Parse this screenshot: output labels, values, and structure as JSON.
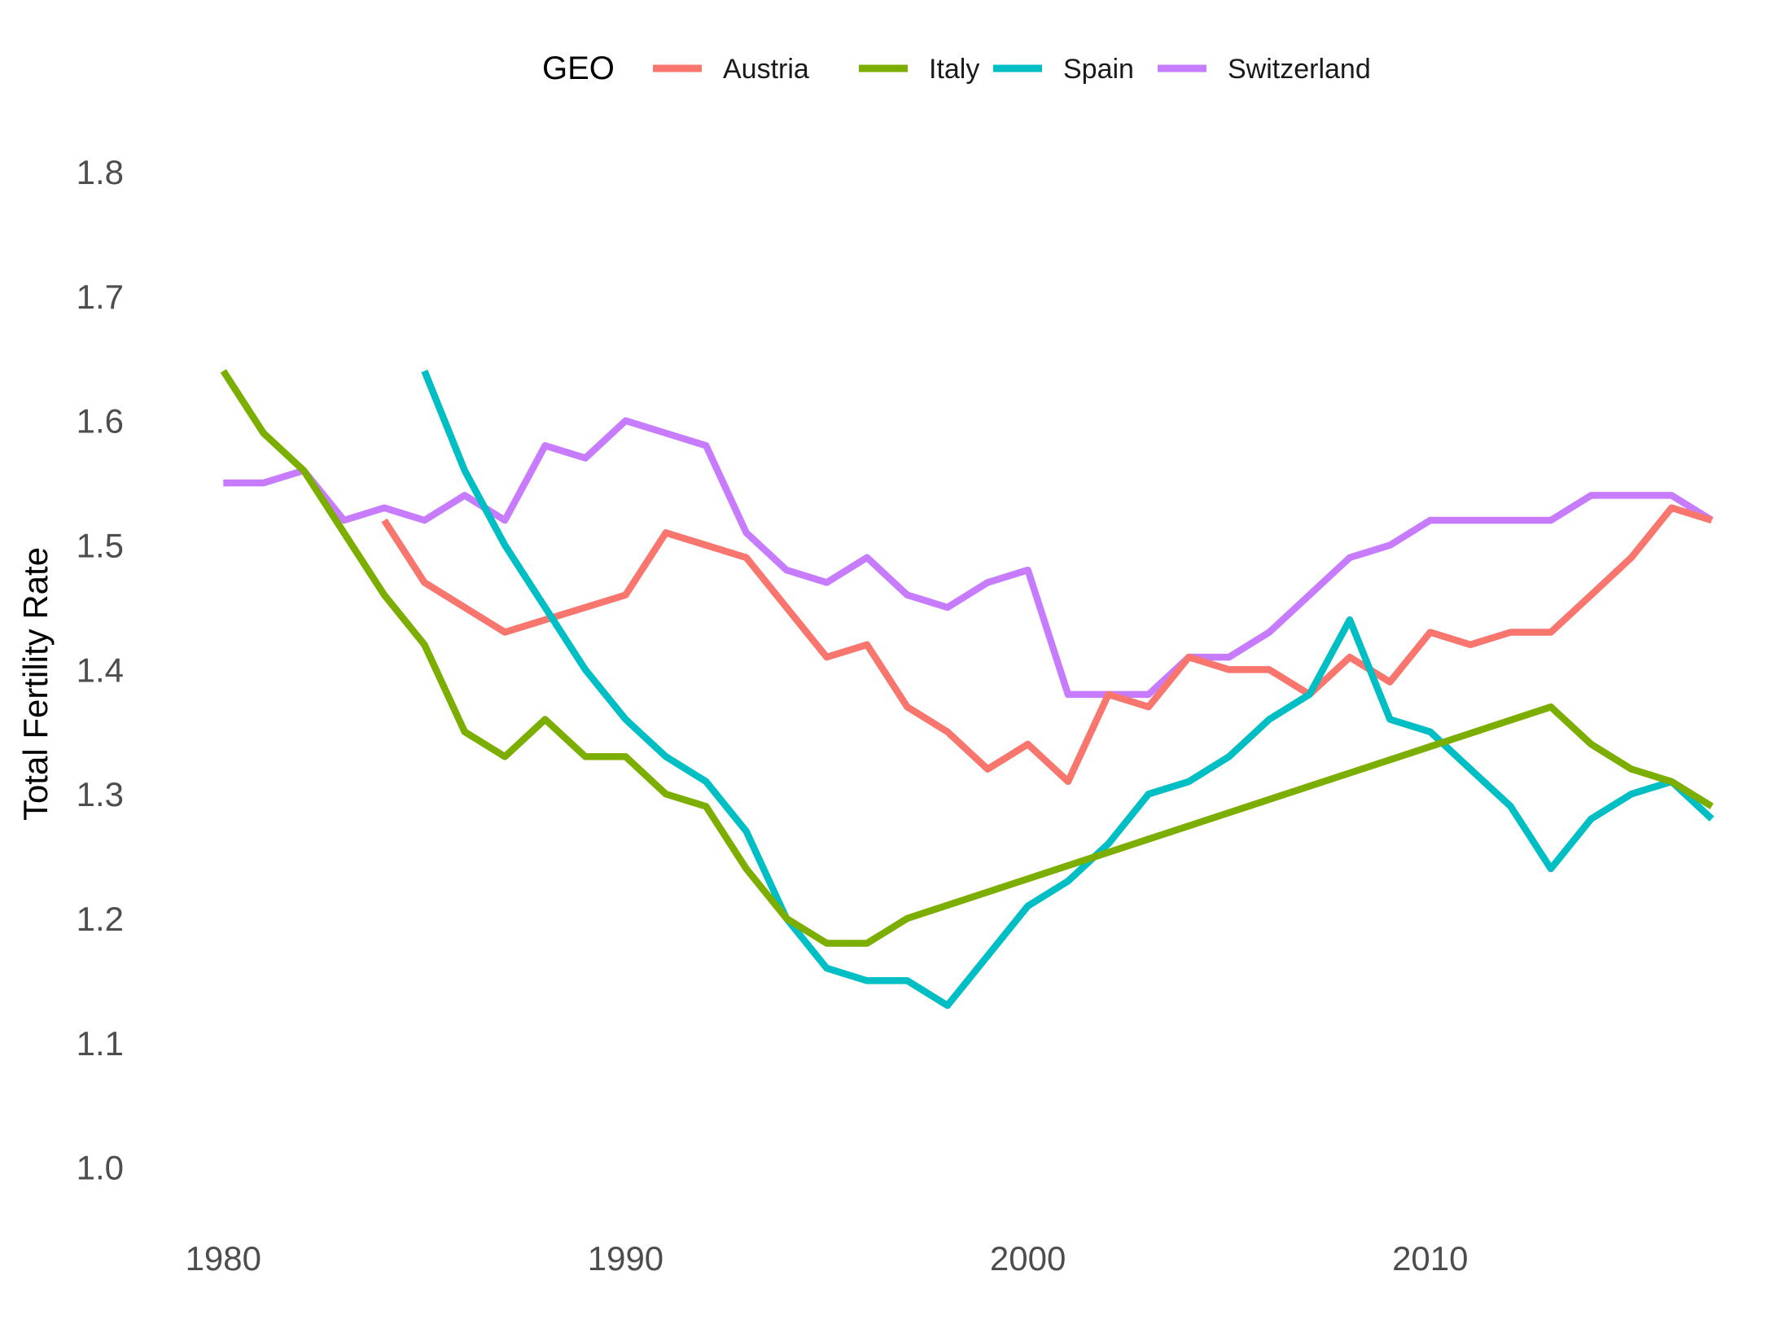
{
  "chart_data": {
    "type": "line",
    "title": "",
    "xlabel": "",
    "ylabel": "Total Fertility Rate",
    "xlim": [
      1978.8,
      2018.2
    ],
    "ylim": [
      0.95,
      1.84
    ],
    "x_ticks": [
      1980,
      1990,
      2000,
      2010
    ],
    "y_ticks": [
      1.0,
      1.1,
      1.2,
      1.3,
      1.4,
      1.5,
      1.6,
      1.7,
      1.8
    ],
    "y_tick_labels": [
      "1.0",
      "1.1",
      "1.2",
      "1.3",
      "1.4",
      "1.5",
      "1.6",
      "1.7",
      "1.8"
    ],
    "grid": false,
    "legend": {
      "position": "top",
      "title": "GEO",
      "entries": [
        "Austria",
        "Italy",
        "Spain",
        "Switzerland"
      ]
    },
    "series": [
      {
        "name": "Switzerland",
        "color": "#C77CFF",
        "x": [
          1980,
          1981,
          1982,
          1983,
          1984,
          1985,
          1986,
          1987,
          1988,
          1989,
          1990,
          1991,
          1992,
          1993,
          1994,
          1995,
          1996,
          1997,
          1998,
          1999,
          2000,
          2001,
          2002,
          2003,
          2004,
          2005,
          2006,
          2007,
          2008,
          2009,
          2010,
          2011,
          2012,
          2013,
          2014,
          2015,
          2016,
          2017
        ],
        "values": [
          1.55,
          1.55,
          1.56,
          1.52,
          1.53,
          1.52,
          1.54,
          1.52,
          1.58,
          1.57,
          1.6,
          1.59,
          1.58,
          1.51,
          1.48,
          1.47,
          1.49,
          1.46,
          1.45,
          1.47,
          1.48,
          1.38,
          1.38,
          1.38,
          1.41,
          1.41,
          1.43,
          1.46,
          1.49,
          1.5,
          1.52,
          1.52,
          1.52,
          1.52,
          1.54,
          1.54,
          1.54,
          1.52
        ]
      },
      {
        "name": "Austria",
        "color": "#F8766D",
        "x": [
          1984,
          1985,
          1986,
          1987,
          1988,
          1989,
          1990,
          1991,
          1992,
          1993,
          1994,
          1995,
          1996,
          1997,
          1998,
          1999,
          2000,
          2001,
          2002,
          2003,
          2004,
          2005,
          2006,
          2007,
          2008,
          2009,
          2010,
          2011,
          2012,
          2013,
          2014,
          2015,
          2016,
          2017
        ],
        "values": [
          1.52,
          1.47,
          1.45,
          1.43,
          1.44,
          1.45,
          1.46,
          1.51,
          1.5,
          1.49,
          1.45,
          1.41,
          1.42,
          1.37,
          1.35,
          1.32,
          1.34,
          1.31,
          1.38,
          1.37,
          1.41,
          1.4,
          1.4,
          1.38,
          1.41,
          1.39,
          1.43,
          1.42,
          1.43,
          1.43,
          1.46,
          1.49,
          1.53,
          1.52
        ]
      },
      {
        "name": "Spain",
        "color": "#00BFC4",
        "x": [
          1985,
          1986,
          1987,
          1988,
          1989,
          1990,
          1991,
          1992,
          1993,
          1994,
          1995,
          1996,
          1997,
          1998,
          1999,
          2000,
          2001,
          2002,
          2003,
          2004,
          2005,
          2006,
          2007,
          2008,
          2009,
          2010,
          2011,
          2012,
          2013,
          2014,
          2015,
          2016,
          2017
        ],
        "values": [
          1.64,
          1.56,
          1.5,
          1.45,
          1.4,
          1.36,
          1.33,
          1.31,
          1.27,
          1.2,
          1.16,
          1.15,
          1.15,
          1.13,
          1.17,
          1.21,
          1.23,
          1.26,
          1.3,
          1.31,
          1.33,
          1.36,
          1.38,
          1.44,
          1.36,
          1.35,
          1.32,
          1.29,
          1.24,
          1.28,
          1.3,
          1.31,
          1.28
        ]
      },
      {
        "name": "Italy",
        "color": "#7CAE00",
        "x": [
          1980,
          1981,
          1982,
          1983,
          1984,
          1985,
          1986,
          1987,
          1988,
          1989,
          1990,
          1991,
          1992,
          1993,
          1994,
          1995,
          1996,
          1997,
          2013,
          2014,
          2015,
          2016,
          2017
        ],
        "values": [
          1.64,
          1.59,
          1.56,
          1.51,
          1.46,
          1.42,
          1.35,
          1.33,
          1.36,
          1.33,
          1.33,
          1.3,
          1.29,
          1.24,
          1.2,
          1.18,
          1.18,
          1.2,
          1.37,
          1.34,
          1.32,
          1.31,
          1.29
        ]
      }
    ]
  }
}
